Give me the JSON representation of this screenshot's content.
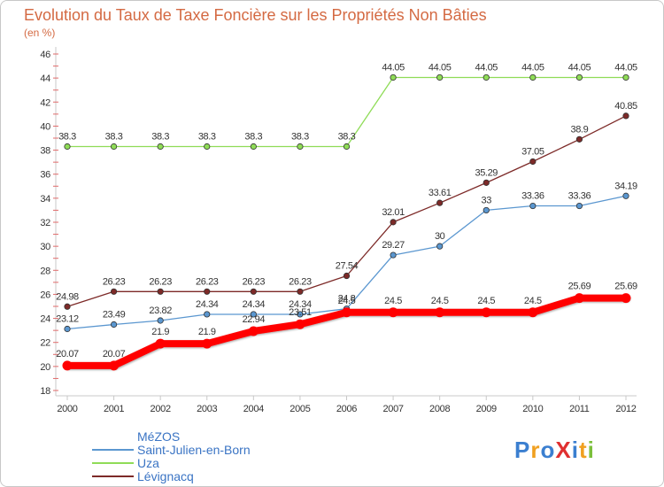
{
  "chart_data": {
    "type": "line",
    "title": "Evolution du Taux de Taxe Foncière sur les Propriétés Non Bâties",
    "unit_label": "(en %)",
    "xlabel": "",
    "ylabel": "",
    "categories": [
      "2000",
      "2001",
      "2002",
      "2003",
      "2004",
      "2005",
      "2006",
      "2007",
      "2008",
      "2009",
      "2010",
      "2011",
      "2012"
    ],
    "yticks": [
      "18",
      "20",
      "22",
      "24",
      "26",
      "28",
      "30",
      "32",
      "34",
      "36",
      "38",
      "40",
      "42",
      "44",
      "46"
    ],
    "ylim": [
      18,
      46
    ],
    "grid": false,
    "legend_position": "bottom-left",
    "series": [
      {
        "name": "MéZOS",
        "color": "#ff0000",
        "values": [
          20.07,
          20.07,
          21.9,
          21.9,
          22.94,
          23.51,
          24.5,
          24.5,
          24.5,
          24.5,
          24.5,
          25.69,
          25.69
        ],
        "labels": [
          "20.07",
          "20.07",
          "21.9",
          "21.9",
          "22.94",
          "23.51",
          "24.5",
          "24.5",
          "24.5",
          "24.5",
          "24.5",
          "25.69",
          "25.69"
        ]
      },
      {
        "name": "Saint-Julien-en-Born",
        "color": "#5b97d0",
        "values": [
          23.12,
          23.49,
          23.82,
          24.34,
          24.34,
          24.34,
          24.8,
          29.27,
          30,
          33,
          33.36,
          33.36,
          34.19
        ],
        "labels": [
          "23.12",
          "23.49",
          "23.82",
          "24.34",
          "24.34",
          "24.34",
          "24.8",
          "29.27",
          "30",
          "33",
          "33.36",
          "33.36",
          "34.19"
        ]
      },
      {
        "name": "Uza",
        "color": "#8fdc57",
        "values": [
          38.3,
          38.3,
          38.3,
          38.3,
          38.3,
          38.3,
          38.3,
          44.05,
          44.05,
          44.05,
          44.05,
          44.05,
          44.05
        ],
        "labels": [
          "38.3",
          "38.3",
          "38.3",
          "38.3",
          "38.3",
          "38.3",
          "38.3",
          "44.05",
          "44.05",
          "44.05",
          "44.05",
          "44.05",
          "44.05"
        ]
      },
      {
        "name": "Lévignacq",
        "color": "#7d2a28",
        "values": [
          24.98,
          26.23,
          26.23,
          26.23,
          26.23,
          26.23,
          27.54,
          32.01,
          33.61,
          35.29,
          37.05,
          38.9,
          40.85
        ],
        "labels": [
          "24.98",
          "26.23",
          "26.23",
          "26.23",
          "26.23",
          "26.23",
          "27.54",
          "32.01",
          "33.61",
          "35.29",
          "37.05",
          "38.9",
          "40.85"
        ]
      }
    ]
  },
  "logo": {
    "text": "ProXiti",
    "letters": [
      {
        "ch": "P",
        "color": "#3b7fd0"
      },
      {
        "ch": "r",
        "color": "#f0a020"
      },
      {
        "ch": "o",
        "color": "#3b7fd0"
      },
      {
        "ch": "X",
        "color": "#e03030"
      },
      {
        "ch": "i",
        "color": "#3b7fd0"
      },
      {
        "ch": "t",
        "color": "#f0a020"
      },
      {
        "ch": "i",
        "color": "#7cc03c"
      }
    ]
  }
}
